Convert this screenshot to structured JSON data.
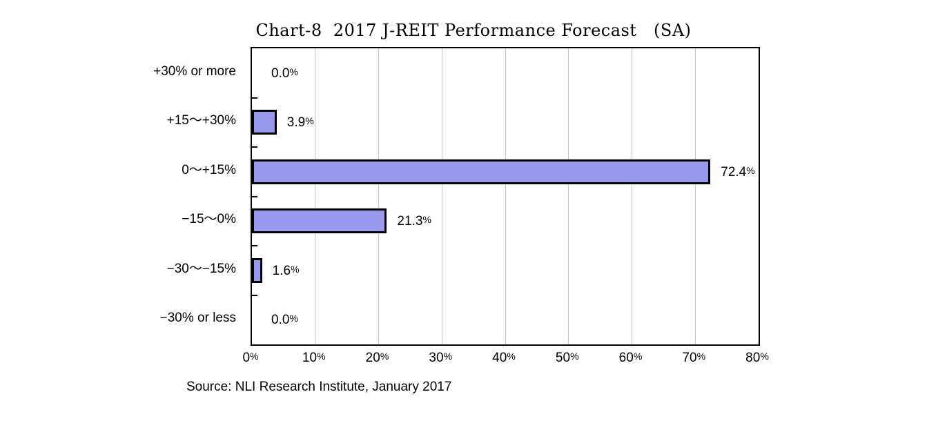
{
  "title": "Chart-8  2017 J-REIT Performance Forecast　(SA)",
  "source": "Source: NLI Research Institute, January 2017",
  "chart_data": {
    "type": "bar",
    "orientation": "horizontal",
    "title": "Chart-8  2017 J-REIT Performance Forecast　(SA)",
    "categories": [
      "+30% or more",
      "+15～+30%",
      "0～+15%",
      "−15～0%",
      "−30～−15%",
      "−30% or less"
    ],
    "values": [
      0.0,
      3.9,
      72.4,
      21.3,
      1.6,
      0.0
    ],
    "data_labels": [
      "0.0%",
      "3.9%",
      "72.4%",
      "21.3%",
      "1.6%",
      "0.0%"
    ],
    "x_tick_labels": [
      "0%",
      "10%",
      "20%",
      "30%",
      "40%",
      "50%",
      "60%",
      "70%",
      "80%"
    ],
    "xlim": [
      0,
      80
    ],
    "xlabel": "",
    "ylabel": "",
    "grid": "vertical",
    "legend": "none",
    "bar_color": "#9999ee",
    "bar_border_color": "#000000",
    "gridline_color": "#c3c3c3",
    "axis_color": "#000000",
    "text_color": "#000000"
  }
}
